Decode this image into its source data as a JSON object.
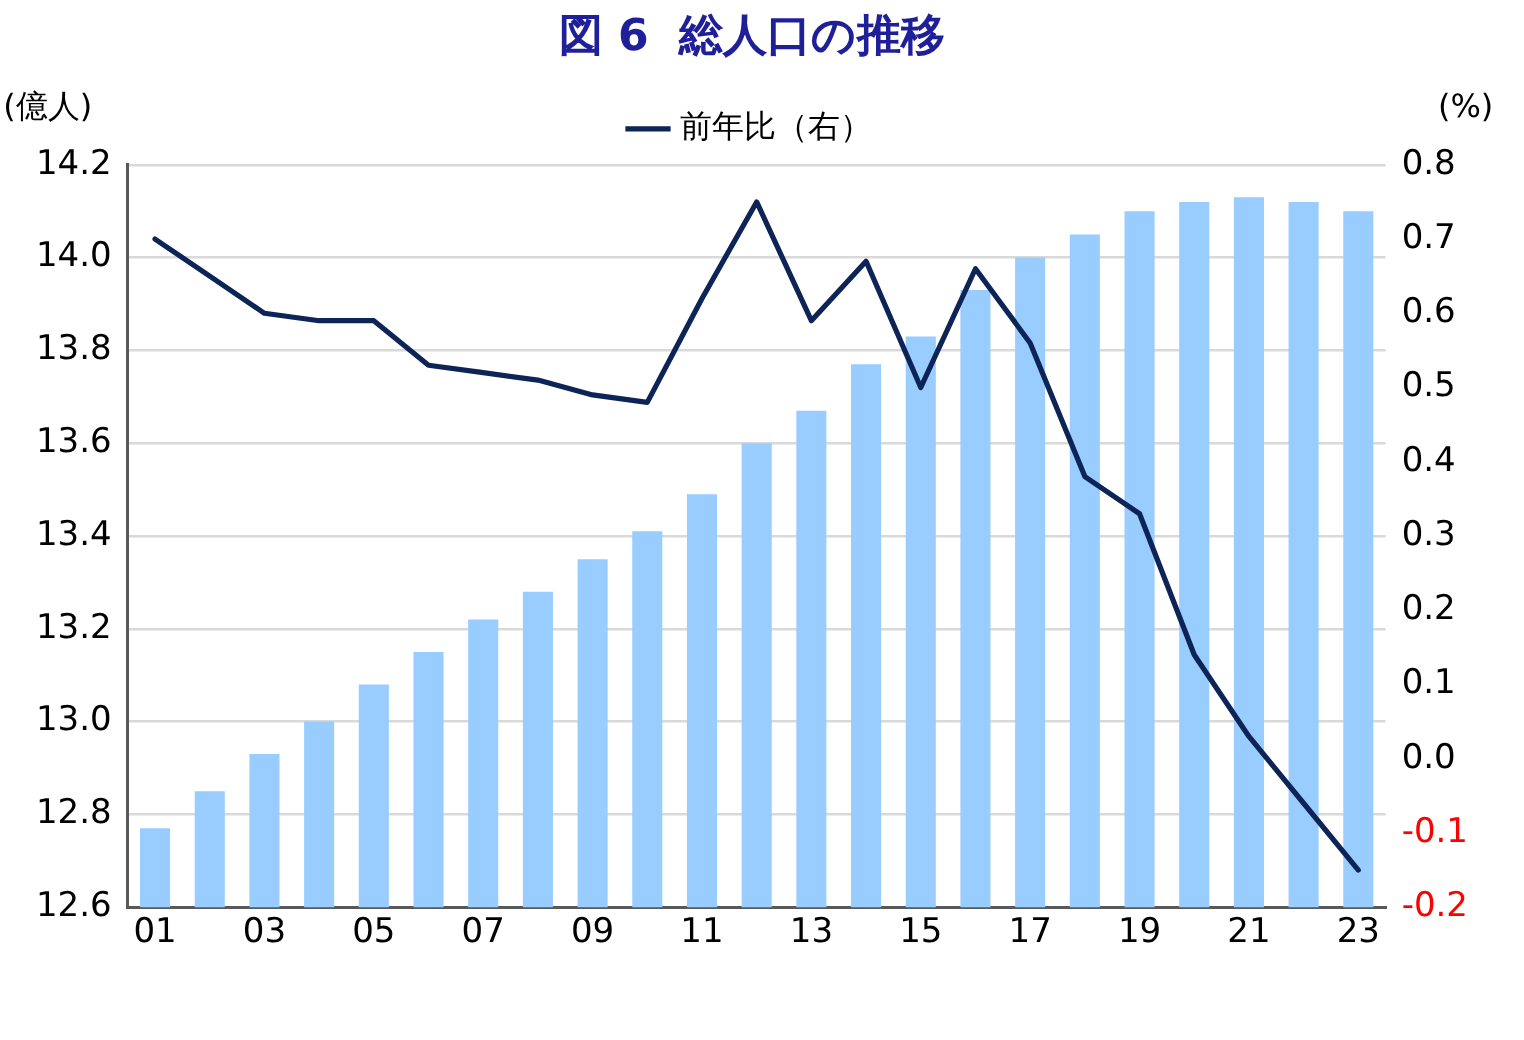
{
  "chart_data": {
    "type": "bar",
    "title": "図 6  総人口の推移",
    "ylabel": "(億人)",
    "y2label": "(%)",
    "categories": [
      "01",
      null,
      "03",
      null,
      "05",
      null,
      "07",
      null,
      "09",
      null,
      "11",
      null,
      "13",
      null,
      "15",
      null,
      "17",
      null,
      "19",
      null,
      "21",
      null,
      "23"
    ],
    "series": [
      {
        "color": "#99ccff",
        "values": [
          12.77,
          12.85,
          12.93,
          13.0,
          13.08,
          13.15,
          13.22,
          13.28,
          13.35,
          13.41,
          13.49,
          13.6,
          13.67,
          13.77,
          13.83,
          13.93,
          14.0,
          14.05,
          14.1,
          14.12,
          14.13,
          14.12,
          14.1
        ]
      },
      {
        "type": "line",
        "axis": "y2",
        "name": "前年比（右）",
        "color": "#0d2456",
        "values": [
          0.7,
          0.65,
          0.6,
          0.59,
          0.59,
          0.53,
          0.52,
          0.51,
          0.49,
          0.48,
          0.62,
          0.75,
          0.59,
          0.67,
          0.5,
          0.66,
          0.56,
          0.38,
          0.33,
          0.14,
          0.03,
          -0.06,
          -0.15
        ]
      }
    ],
    "ylim": [
      12.6,
      14.2
    ],
    "yticks": [
      {
        "value": 12.6,
        "label": "12.6"
      },
      {
        "value": 12.8,
        "label": "12.8"
      },
      {
        "value": 13.0,
        "label": "13.0"
      },
      {
        "value": 13.2,
        "label": "13.2"
      },
      {
        "value": 13.4,
        "label": "13.4"
      },
      {
        "value": 13.6,
        "label": "13.6"
      },
      {
        "value": 13.8,
        "label": "13.8"
      },
      {
        "value": 14.0,
        "label": "14.0"
      },
      {
        "value": 14.2,
        "label": "14.2"
      }
    ],
    "y2lim": [
      -0.2,
      0.8
    ],
    "y2ticks": [
      {
        "value": -0.2,
        "label": "-0.2"
      },
      {
        "value": -0.1,
        "label": "-0.1"
      },
      {
        "value": 0.0,
        "label": "0.0"
      },
      0.1,
      0.2,
      0.3,
      0.4,
      0.5,
      0.6,
      0.7,
      0.8
    ],
    "grid": "y",
    "legend": "top",
    "marker": "none",
    "line_style": "solid"
  }
}
